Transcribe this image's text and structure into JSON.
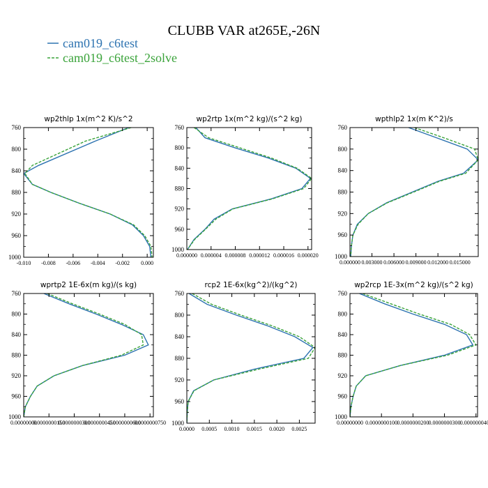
{
  "title": "CLUBB VAR at265E,-26N",
  "legend": [
    {
      "label": "cam019_c6test",
      "color": "#2c72b0",
      "dash": false
    },
    {
      "label": "cam019_c6test_2solve",
      "color": "#3aa33a",
      "dash": true
    }
  ],
  "chart_data": [
    {
      "type": "line",
      "title": "wp2thlp   1x(m^2 K)/s^2",
      "ylim": [
        760,
        1000
      ],
      "yticks": [
        "760",
        "800",
        "840",
        "880",
        "920",
        "960",
        "1000"
      ],
      "xlim": [
        -0.01,
        0.0005
      ],
      "xticks": [
        {
          "v": -0.01,
          "label": "-0.010"
        },
        {
          "v": -0.008,
          "label": "-0.008"
        },
        {
          "v": -0.006,
          "label": "-0.006"
        },
        {
          "v": -0.004,
          "label": "-0.004"
        },
        {
          "v": -0.002,
          "label": "-0.002"
        },
        {
          "v": 0.0,
          "label": "0.000"
        }
      ],
      "y": [
        760,
        785,
        830,
        845,
        865,
        880,
        900,
        920,
        940,
        960,
        980,
        1000
      ],
      "series": [
        {
          "name": "cam019_c6test",
          "values": [
            -0.0015,
            -0.0042,
            -0.0088,
            -0.01,
            -0.0093,
            -0.0078,
            -0.0055,
            -0.003,
            -0.0012,
            -0.0003,
            0.0002,
            0.0003
          ]
        },
        {
          "name": "cam019_c6test_2solve",
          "values": [
            -0.0013,
            -0.005,
            -0.0093,
            -0.0099,
            -0.0093,
            -0.0078,
            -0.0055,
            -0.003,
            -0.0011,
            -0.0002,
            0.0003,
            0.0004
          ]
        }
      ]
    },
    {
      "type": "line",
      "title": "wp2rtp   1x(m^2 kg)/(s^2 kg)",
      "ylim": [
        760,
        1000
      ],
      "yticks": [
        "760",
        "800",
        "840",
        "880",
        "920",
        "960",
        "1000"
      ],
      "xlim": [
        0,
        2.06e-05
      ],
      "xticks": [
        {
          "v": 0,
          "label": "0.000000"
        },
        {
          "v": 4e-06,
          "label": "0.000004"
        },
        {
          "v": 8e-06,
          "label": "0.000008"
        },
        {
          "v": 1.2e-05,
          "label": "0.000012"
        },
        {
          "v": 1.6e-05,
          "label": "0.000016"
        },
        {
          "v": 2e-05,
          "label": "0.000020"
        }
      ],
      "y": [
        760,
        780,
        800,
        820,
        840,
        860,
        880,
        900,
        920,
        940,
        960,
        980,
        1000
      ],
      "series": [
        {
          "name": "cam019_c6test",
          "values": [
            1.5e-06,
            3e-06,
            8e-06,
            1.35e-05,
            1.8e-05,
            2.04e-05,
            1.9e-05,
            1.4e-05,
            7.5e-06,
            4.5e-06,
            3e-06,
            1.2e-06,
            1e-07
          ]
        },
        {
          "name": "cam019_c6test_2solve",
          "values": [
            1.2e-06,
            3.6e-06,
            8.8e-06,
            1.4e-05,
            1.82e-05,
            2.06e-05,
            1.93e-05,
            1.42e-05,
            7.6e-06,
            4.8e-06,
            3.1e-06,
            1.3e-06,
            1e-07
          ]
        }
      ]
    },
    {
      "type": "line",
      "title": "wpthlp2   1x(m K^2)/s",
      "ylim": [
        760,
        1000
      ],
      "yticks": [
        "760",
        "800",
        "840",
        "880",
        "920",
        "960",
        "1000"
      ],
      "xlim": [
        0,
        0.0175
      ],
      "xticks": [
        {
          "v": 0,
          "label": "0.000000"
        },
        {
          "v": 0.003,
          "label": "0.003000"
        },
        {
          "v": 0.006,
          "label": "0.006000"
        },
        {
          "v": 0.009,
          "label": "0.009000"
        },
        {
          "v": 0.012,
          "label": "0.012000"
        },
        {
          "v": 0.015,
          "label": "0.015000"
        }
      ],
      "y": [
        760,
        780,
        800,
        820,
        845,
        860,
        880,
        900,
        920,
        940,
        960,
        980,
        1000
      ],
      "series": [
        {
          "name": "cam019_c6test",
          "values": [
            0.008,
            0.012,
            0.016,
            0.0175,
            0.0155,
            0.012,
            0.0085,
            0.005,
            0.0025,
            0.001,
            0.0004,
            0.0002,
            0.0001
          ]
        },
        {
          "name": "cam019_c6test_2solve",
          "values": [
            0.0088,
            0.013,
            0.017,
            0.0175,
            0.0158,
            0.0122,
            0.0087,
            0.0051,
            0.0025,
            0.0011,
            0.0004,
            0.0002,
            0.0001
          ]
        }
      ]
    },
    {
      "type": "line",
      "title": "wprtp2   1E-6x(m kg)/(s kg)",
      "ylim": [
        760,
        1000
      ],
      "yticks": [
        "760",
        "800",
        "840",
        "880",
        "920",
        "960",
        "1000"
      ],
      "xlim": [
        0,
        7.7e-08
      ],
      "xticks": [
        {
          "v": 0,
          "label": "0.00000000"
        },
        {
          "v": 1.5e-08,
          "label": "0.0000000150"
        },
        {
          "v": 3e-08,
          "label": "0.0000000300"
        },
        {
          "v": 4.5e-08,
          "label": "0.0000000450"
        },
        {
          "v": 6e-08,
          "label": "0.0000000600"
        },
        {
          "v": 7.5e-08,
          "label": "0.0000000750"
        }
      ],
      "y": [
        760,
        780,
        800,
        820,
        840,
        860,
        880,
        900,
        920,
        940,
        960,
        980,
        1000
      ],
      "series": [
        {
          "name": "cam019_c6test",
          "values": [
            1.2e-08,
            2.7e-08,
            4.3e-08,
            5.8e-08,
            7.1e-08,
            7.4e-08,
            6e-08,
            3.5e-08,
            1.8e-08,
            8e-09,
            4e-09,
            1e-09,
            0.0
          ]
        },
        {
          "name": "cam019_c6test_2solve",
          "values": [
            1.4e-08,
            2.9e-08,
            4.5e-08,
            6e-08,
            7e-08,
            7.1e-08,
            5.8e-08,
            3.5e-08,
            1.8e-08,
            8e-09,
            4e-09,
            1e-09,
            0.0
          ]
        }
      ]
    },
    {
      "type": "line",
      "title": "rcp2   1E-6x(kg^2)/(kg^2)",
      "ylim": [
        760,
        1000
      ],
      "yticks": [
        "760",
        "800",
        "840",
        "880",
        "920",
        "960",
        "1000"
      ],
      "xlim": [
        0,
        0.00285
      ],
      "xticks": [
        {
          "v": 0.0,
          "label": "0.0000"
        },
        {
          "v": 0.0005,
          "label": "0.0005"
        },
        {
          "v": 0.001,
          "label": "0.0010"
        },
        {
          "v": 0.0015,
          "label": "0.0015"
        },
        {
          "v": 0.002,
          "label": "0.0020"
        },
        {
          "v": 0.0025,
          "label": "0.0025"
        }
      ],
      "y": [
        760,
        780,
        800,
        820,
        840,
        860,
        880,
        900,
        920,
        940,
        960,
        980,
        1000
      ],
      "series": [
        {
          "name": "cam019_c6test",
          "values": [
            5e-05,
            0.00045,
            0.0011,
            0.0018,
            0.0024,
            0.0028,
            0.0026,
            0.0015,
            0.0006,
            0.00015,
            3e-05,
            1e-05,
            0.0
          ]
        },
        {
          "name": "cam019_c6test_2solve",
          "values": [
            0.00012,
            0.00055,
            0.0012,
            0.0019,
            0.0025,
            0.00285,
            0.0027,
            0.0016,
            0.0006,
            0.00016,
            3e-05,
            1e-05,
            0.0
          ]
        }
      ]
    },
    {
      "type": "line",
      "title": "wp2rcp   1E-3x(m^2 kg)/(s^2 kg)",
      "ylim": [
        760,
        1000
      ],
      "yticks": [
        "760",
        "800",
        "840",
        "880",
        "920",
        "960",
        "1000"
      ],
      "xlim": [
        0,
        4.05e-08
      ],
      "xticks": [
        {
          "v": 0,
          "label": "0.00000000"
        },
        {
          "v": 1e-08,
          "label": "0.0000000100"
        },
        {
          "v": 2e-08,
          "label": "0.0000000200"
        },
        {
          "v": 3e-08,
          "label": "0.0000000300"
        },
        {
          "v": 4e-08,
          "label": "0.0000000400"
        }
      ],
      "y": [
        760,
        780,
        800,
        820,
        840,
        860,
        880,
        900,
        920,
        940,
        960,
        980,
        1000
      ],
      "series": [
        {
          "name": "cam019_c6test",
          "values": [
            3e-09,
            1.1e-08,
            2e-08,
            3e-08,
            3.7e-08,
            3.9e-08,
            3e-08,
            1.6e-08,
            5e-09,
            2e-09,
            1e-09,
            3e-10,
            0.0
          ]
        },
        {
          "name": "cam019_c6test_2solve",
          "values": [
            4e-09,
            1.3e-08,
            2.2e-08,
            3.2e-08,
            3.8e-08,
            4e-08,
            3.1e-08,
            1.6e-08,
            5e-09,
            2e-09,
            1e-09,
            3e-10,
            0.0
          ]
        }
      ]
    }
  ]
}
